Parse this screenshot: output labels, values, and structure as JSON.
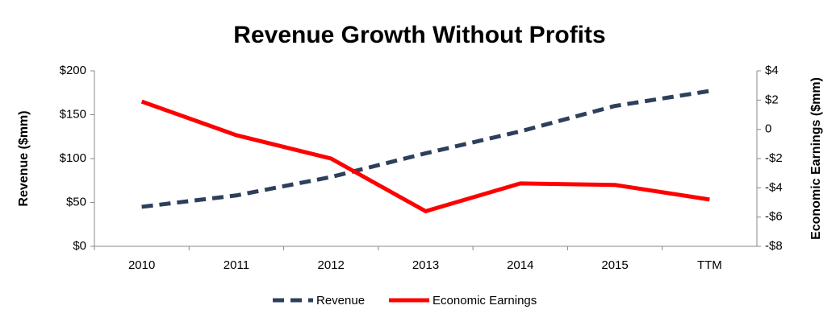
{
  "chart_data": {
    "type": "line",
    "title": "Revenue Growth Without Profits",
    "categories": [
      "2010",
      "2011",
      "2012",
      "2013",
      "2014",
      "2015",
      "TTM"
    ],
    "ylabel": "Revenue ($mm)",
    "y2label": "Economic Earnings ($mm)",
    "ylim": [
      0,
      200
    ],
    "yticks": [
      {
        "value": 0,
        "label": "$0"
      },
      {
        "value": 50,
        "label": "$50"
      },
      {
        "value": 100,
        "label": "$100"
      },
      {
        "value": 150,
        "label": "$150"
      },
      {
        "value": 200,
        "label": "$200"
      }
    ],
    "y2lim": [
      -8,
      4
    ],
    "y2ticks": [
      {
        "value": -8,
        "label": "-$8"
      },
      {
        "value": -6,
        "label": "-$6"
      },
      {
        "value": -4,
        "label": "-$4"
      },
      {
        "value": -2,
        "label": "-$2"
      },
      {
        "value": 0,
        "label": "0"
      },
      {
        "value": 2,
        "label": "$2"
      },
      {
        "value": 4,
        "label": "$4"
      }
    ],
    "series": [
      {
        "name": "Revenue",
        "color": "#2e3f5c",
        "dashed": true,
        "values": [
          45,
          58,
          79,
          106,
          131,
          160,
          177
        ]
      },
      {
        "name": "Economic Earnings",
        "color": "#ff0000",
        "axis": "y2",
        "values": [
          1.9,
          -0.4,
          -2.0,
          -5.6,
          -3.7,
          -3.8,
          -4.8
        ]
      }
    ],
    "legend": "bottom"
  }
}
